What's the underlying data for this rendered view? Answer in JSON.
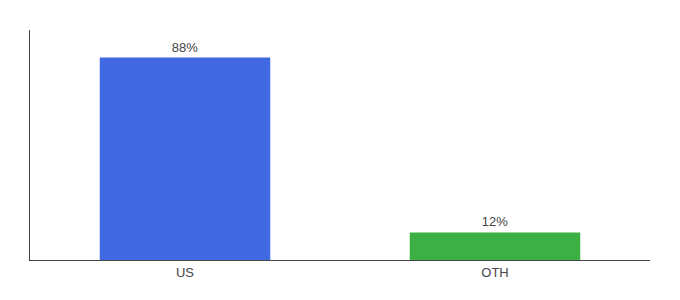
{
  "chart_data": {
    "type": "bar",
    "categories": [
      "US",
      "OTH"
    ],
    "values": [
      88,
      12
    ],
    "value_labels": [
      "88%",
      "12%"
    ],
    "data_labels": true,
    "colors": [
      "#4169e1",
      "#3cb043"
    ],
    "ylim": [
      0,
      100
    ],
    "grid": false,
    "tick_labels": "x"
  }
}
